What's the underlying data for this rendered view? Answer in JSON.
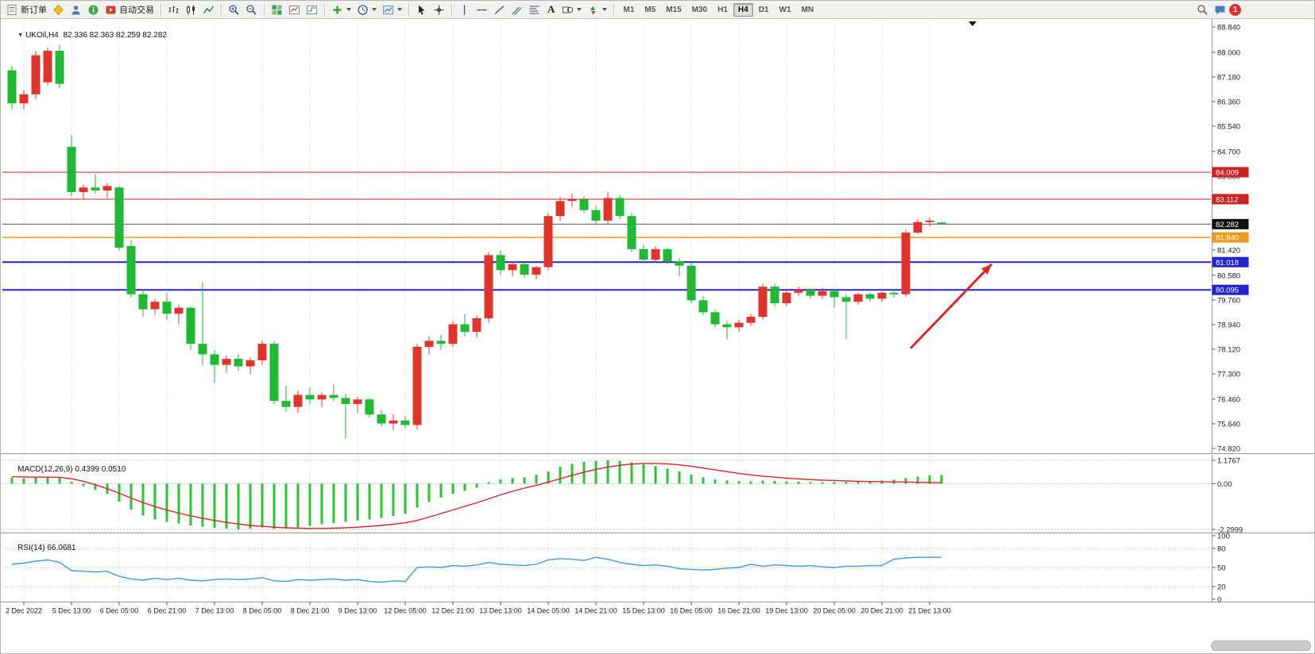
{
  "toolbar": {
    "new_order": "新订单",
    "autotrade": "自动交易",
    "text_tool": "A",
    "timeframes": [
      "M1",
      "M5",
      "M15",
      "M30",
      "H1",
      "H4",
      "D1",
      "W1",
      "MN"
    ],
    "active_timeframe": "H4",
    "notification_count": "1"
  },
  "chart_header": {
    "symbol": "UKOil,H4",
    "ohlc": "82.336 82.363 82.259 82.282"
  },
  "chart_data": {
    "type": "candlestick",
    "symbol": "UKOil",
    "period": "H4",
    "up_color": "#e0332c",
    "down_color": "#1fb933",
    "price_range": {
      "max": 88.84,
      "min": 74.82
    },
    "price_axis_ticks": [
      "88.840",
      "88.000",
      "87.180",
      "86.360",
      "85.540",
      "84.700",
      "83.880",
      "83.060",
      "82.240",
      "81.420",
      "80.580",
      "79.760",
      "78.940",
      "78.120",
      "77.300",
      "76.460",
      "75.640",
      "74.820"
    ],
    "ohlc": [
      [
        87.4,
        87.55,
        86.1,
        86.3
      ],
      [
        86.3,
        86.75,
        86.1,
        86.6
      ],
      [
        86.6,
        88.05,
        86.45,
        87.9
      ],
      [
        87.0,
        88.15,
        86.9,
        88.05
      ],
      [
        88.05,
        88.25,
        86.8,
        86.95
      ],
      [
        84.85,
        85.25,
        83.2,
        83.35
      ],
      [
        83.35,
        83.6,
        83.1,
        83.5
      ],
      [
        83.5,
        83.95,
        83.3,
        83.4
      ],
      [
        83.4,
        83.65,
        83.15,
        83.55
      ],
      [
        83.5,
        83.55,
        81.4,
        81.5
      ],
      [
        81.55,
        81.75,
        79.85,
        79.95
      ],
      [
        79.95,
        80.1,
        79.2,
        79.45
      ],
      [
        79.45,
        79.8,
        79.25,
        79.7
      ],
      [
        79.7,
        80.0,
        79.1,
        79.3
      ],
      [
        79.3,
        79.6,
        78.95,
        79.5
      ],
      [
        79.5,
        79.55,
        78.1,
        78.3
      ],
      [
        78.3,
        80.35,
        77.6,
        77.95
      ],
      [
        77.95,
        78.1,
        77.0,
        77.6
      ],
      [
        77.6,
        77.9,
        77.35,
        77.8
      ],
      [
        77.8,
        77.95,
        77.4,
        77.55
      ],
      [
        77.55,
        77.85,
        77.3,
        77.75
      ],
      [
        77.75,
        78.4,
        77.6,
        78.3
      ],
      [
        78.3,
        78.4,
        76.3,
        76.4
      ],
      [
        76.4,
        76.9,
        76.05,
        76.2
      ],
      [
        76.2,
        76.75,
        76.0,
        76.6
      ],
      [
        76.6,
        76.85,
        76.3,
        76.45
      ],
      [
        76.45,
        76.7,
        76.2,
        76.6
      ],
      [
        76.6,
        76.95,
        76.4,
        76.5
      ],
      [
        76.5,
        76.65,
        75.15,
        76.3
      ],
      [
        76.3,
        76.55,
        76.0,
        76.45
      ],
      [
        76.45,
        76.5,
        75.85,
        75.95
      ],
      [
        75.95,
        76.1,
        75.55,
        75.65
      ],
      [
        75.65,
        75.95,
        75.45,
        75.75
      ],
      [
        75.75,
        75.9,
        75.5,
        75.6
      ],
      [
        75.6,
        78.3,
        75.45,
        78.2
      ],
      [
        78.2,
        78.55,
        77.95,
        78.4
      ],
      [
        78.4,
        78.6,
        78.1,
        78.3
      ],
      [
        78.3,
        79.05,
        78.2,
        78.95
      ],
      [
        78.95,
        79.3,
        78.55,
        78.7
      ],
      [
        78.7,
        79.25,
        78.5,
        79.15
      ],
      [
        79.15,
        81.35,
        79.0,
        81.25
      ],
      [
        81.25,
        81.4,
        80.6,
        80.75
      ],
      [
        80.75,
        81.05,
        80.55,
        80.95
      ],
      [
        80.95,
        81.0,
        80.5,
        80.6
      ],
      [
        80.6,
        80.9,
        80.45,
        80.85
      ],
      [
        80.85,
        82.65,
        80.75,
        82.55
      ],
      [
        82.55,
        83.2,
        82.4,
        83.05
      ],
      [
        83.05,
        83.3,
        82.85,
        83.1
      ],
      [
        83.1,
        83.2,
        82.65,
        82.75
      ],
      [
        82.75,
        82.9,
        82.25,
        82.4
      ],
      [
        82.4,
        83.35,
        82.3,
        83.15
      ],
      [
        83.15,
        83.25,
        82.45,
        82.55
      ],
      [
        82.55,
        82.65,
        81.35,
        81.45
      ],
      [
        81.45,
        81.6,
        81.0,
        81.1
      ],
      [
        81.1,
        81.55,
        81.0,
        81.45
      ],
      [
        81.45,
        81.5,
        80.95,
        81.05
      ],
      [
        81.05,
        81.15,
        80.55,
        80.9
      ],
      [
        80.9,
        81.0,
        79.65,
        79.75
      ],
      [
        79.75,
        79.9,
        79.25,
        79.35
      ],
      [
        79.35,
        79.45,
        78.85,
        78.95
      ],
      [
        78.95,
        79.05,
        78.45,
        78.85
      ],
      [
        78.85,
        79.1,
        78.7,
        79.0
      ],
      [
        79.0,
        79.3,
        78.9,
        79.2
      ],
      [
        79.2,
        80.3,
        79.1,
        80.2
      ],
      [
        80.2,
        80.3,
        79.55,
        79.65
      ],
      [
        79.65,
        80.1,
        79.55,
        80.0
      ],
      [
        80.0,
        80.2,
        79.9,
        80.1
      ],
      [
        80.1,
        80.15,
        79.8,
        79.9
      ],
      [
        79.9,
        80.15,
        79.8,
        80.05
      ],
      [
        80.05,
        80.1,
        79.5,
        79.85
      ],
      [
        79.85,
        79.95,
        78.45,
        79.7
      ],
      [
        79.7,
        80.0,
        79.6,
        79.95
      ],
      [
        79.95,
        80.0,
        79.7,
        79.8
      ],
      [
        79.8,
        80.05,
        79.7,
        80.0
      ],
      [
        80.0,
        80.1,
        79.85,
        79.95
      ],
      [
        79.95,
        82.1,
        79.85,
        82.0
      ],
      [
        82.0,
        82.45,
        81.95,
        82.35
      ],
      [
        82.35,
        82.5,
        82.2,
        82.4
      ],
      [
        82.336,
        82.363,
        82.259,
        82.282
      ]
    ],
    "time_labels": [
      {
        "text": "2 Dec 2022",
        "bar": 1
      },
      {
        "text": "5 Dec 13:00",
        "bar": 5
      },
      {
        "text": "6 Dec 05:00",
        "bar": 9
      },
      {
        "text": "6 Dec 21:00",
        "bar": 13
      },
      {
        "text": "7 Dec 13:00",
        "bar": 17
      },
      {
        "text": "8 Dec 05:00",
        "bar": 21
      },
      {
        "text": "8 Dec 21:00",
        "bar": 25
      },
      {
        "text": "9 Dec 13:00",
        "bar": 29
      },
      {
        "text": "12 Dec 05:00",
        "bar": 33
      },
      {
        "text": "12 Dec 21:00",
        "bar": 37
      },
      {
        "text": "13 Dec 13:00",
        "bar": 41
      },
      {
        "text": "14 Dec 05:00",
        "bar": 45
      },
      {
        "text": "14 Dec 21:00",
        "bar": 49
      },
      {
        "text": "15 Dec 13:00",
        "bar": 53
      },
      {
        "text": "16 Dec 05:00",
        "bar": 57
      },
      {
        "text": "16 Dec 21:00",
        "bar": 61
      },
      {
        "text": "19 Dec 13:00",
        "bar": 65
      },
      {
        "text": "20 Dec 05:00",
        "bar": 69
      },
      {
        "text": "20 Dec 21:00",
        "bar": 73
      },
      {
        "text": "21 Dec 13:00",
        "bar": 77
      }
    ],
    "hlines": [
      {
        "price": 84.009,
        "label": "84.009",
        "color": "#cc2222",
        "width": 1
      },
      {
        "price": 83.112,
        "label": "83.112",
        "color": "#cc2222",
        "width": 1
      },
      {
        "price": 82.282,
        "label": "82.282",
        "color": "#555555",
        "badge": "#111111",
        "width": 1,
        "current": true
      },
      {
        "price": 81.84,
        "label": "81.840",
        "color": "#ef9a1a",
        "width": 1.5
      },
      {
        "price": 81.018,
        "label": "81.018",
        "color": "#2424cc",
        "width": 2
      },
      {
        "price": 80.095,
        "label": "80.095",
        "color": "#2424cc",
        "width": 2
      }
    ],
    "arrow": {
      "from_bar": 75.4,
      "from_price": 78.15,
      "to_bar": 82.2,
      "to_price": 80.95,
      "color": "#d42a2a"
    },
    "macd": {
      "label": "MACD(12,26,9)",
      "values_text": "0.4399 0.0510",
      "axis": [
        "1.1767",
        "0.00",
        "-2.2999"
      ],
      "max": 1.1767,
      "min": -2.2999,
      "hist_color": "#28c433",
      "signal_color": "#e02424",
      "histogram": [
        0.3,
        0.28,
        0.3,
        0.34,
        0.3,
        0.1,
        -0.12,
        -0.3,
        -0.52,
        -0.9,
        -1.3,
        -1.6,
        -1.8,
        -1.92,
        -2.0,
        -2.1,
        -2.16,
        -2.22,
        -2.26,
        -2.3,
        -2.26,
        -2.2,
        -2.28,
        -2.26,
        -2.2,
        -2.12,
        -2.04,
        -1.97,
        -1.92,
        -1.86,
        -1.8,
        -1.72,
        -1.62,
        -1.52,
        -1.2,
        -0.92,
        -0.7,
        -0.5,
        -0.36,
        -0.2,
        0.08,
        0.22,
        0.28,
        0.32,
        0.45,
        0.62,
        0.85,
        1.0,
        1.1,
        1.15,
        1.18,
        1.15,
        1.08,
        0.98,
        0.88,
        0.76,
        0.62,
        0.46,
        0.32,
        0.22,
        0.16,
        0.13,
        0.12,
        0.15,
        0.14,
        0.12,
        0.1,
        0.08,
        0.08,
        0.09,
        0.1,
        0.12,
        0.14,
        0.16,
        0.2,
        0.28,
        0.36,
        0.42,
        0.44
      ],
      "signal": [
        0.35,
        0.34,
        0.33,
        0.33,
        0.32,
        0.25,
        0.12,
        -0.05,
        -0.25,
        -0.48,
        -0.72,
        -0.95,
        -1.15,
        -1.33,
        -1.48,
        -1.62,
        -1.74,
        -1.85,
        -1.95,
        -2.03,
        -2.1,
        -2.15,
        -2.19,
        -2.22,
        -2.24,
        -2.25,
        -2.25,
        -2.24,
        -2.22,
        -2.19,
        -2.15,
        -2.1,
        -2.04,
        -1.97,
        -1.85,
        -1.68,
        -1.5,
        -1.32,
        -1.14,
        -0.96,
        -0.76,
        -0.56,
        -0.38,
        -0.22,
        -0.08,
        0.08,
        0.25,
        0.42,
        0.58,
        0.72,
        0.84,
        0.93,
        0.99,
        1.02,
        1.02,
        1.0,
        0.95,
        0.88,
        0.79,
        0.7,
        0.61,
        0.52,
        0.44,
        0.38,
        0.33,
        0.28,
        0.24,
        0.21,
        0.18,
        0.16,
        0.14,
        0.12,
        0.11,
        0.1,
        0.09,
        0.08,
        0.07,
        0.06,
        0.05
      ]
    },
    "rsi": {
      "label": "RSI(14)",
      "value_text": "66.0681",
      "axis": [
        "100",
        "80",
        "50",
        "20",
        "0"
      ],
      "levels": [
        80,
        50,
        20
      ],
      "color": "#3d9be9",
      "values": [
        55,
        57,
        60,
        62,
        58,
        45,
        44,
        43,
        44,
        36,
        32,
        30,
        33,
        31,
        33,
        30,
        29,
        31,
        32,
        31,
        32,
        34,
        29,
        28,
        31,
        30,
        31,
        32,
        30,
        31,
        28,
        27,
        29,
        28,
        50,
        51,
        50,
        53,
        52,
        54,
        58,
        55,
        54,
        53,
        55,
        62,
        64,
        63,
        61,
        66,
        63,
        58,
        55,
        53,
        54,
        52,
        48,
        47,
        46,
        47,
        49,
        50,
        55,
        52,
        54,
        53,
        52,
        53,
        51,
        50,
        52,
        52,
        53,
        53,
        63,
        65,
        66,
        66,
        66.07
      ]
    }
  }
}
